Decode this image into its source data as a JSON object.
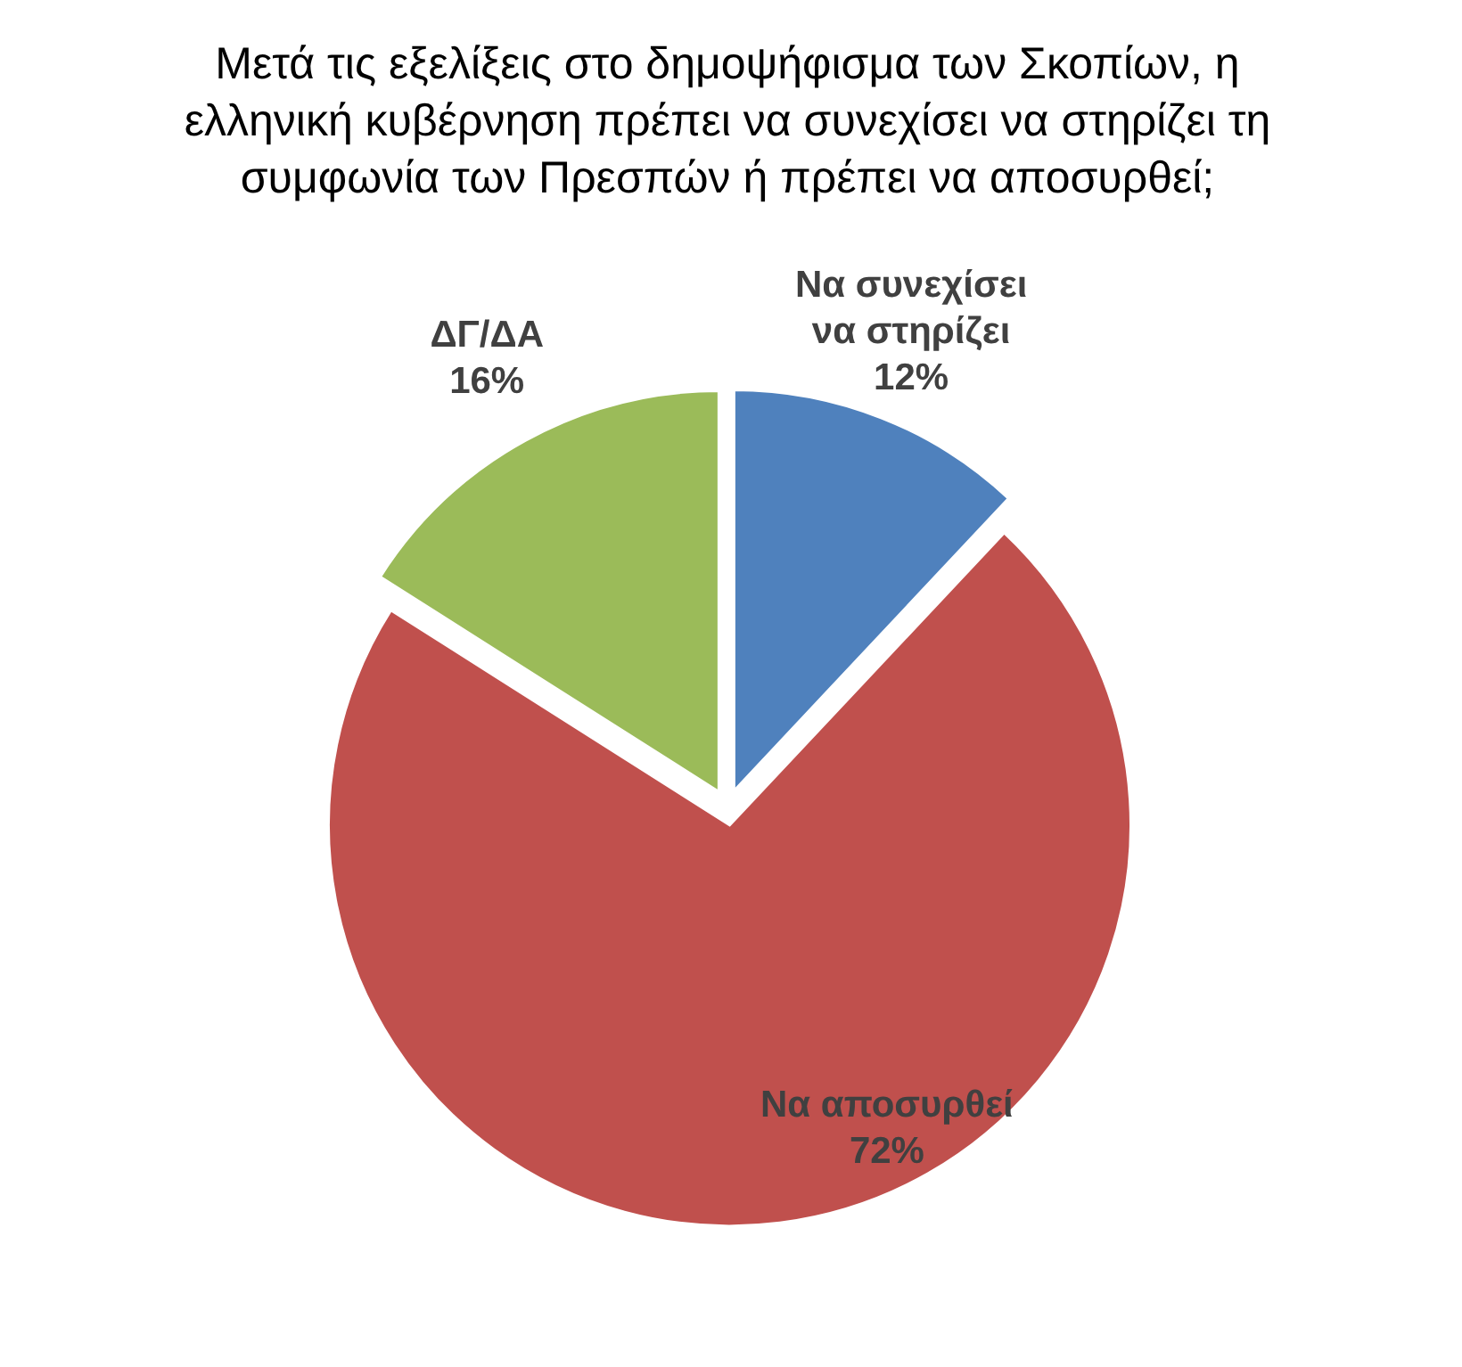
{
  "chart_data": {
    "type": "pie",
    "title": "Μετά τις εξελίξεις στο δημοψήφισμα των Σκοπίων, η ελληνική κυβέρνηση πρέπει να συνεχίσει να στηρίζει τη συμφωνία των Πρεσπών ή πρέπει να αποσυρθεί;",
    "categories": [
      "Να συνεχίσει να στηρίζει",
      "Να αποσυρθεί",
      "ΔΓ/ΔΑ"
    ],
    "values": [
      12,
      72,
      16
    ],
    "colors": [
      "#4f81bd",
      "#c0504d",
      "#9bbb59"
    ],
    "value_labels": [
      "12%",
      "72%",
      "16%"
    ]
  }
}
